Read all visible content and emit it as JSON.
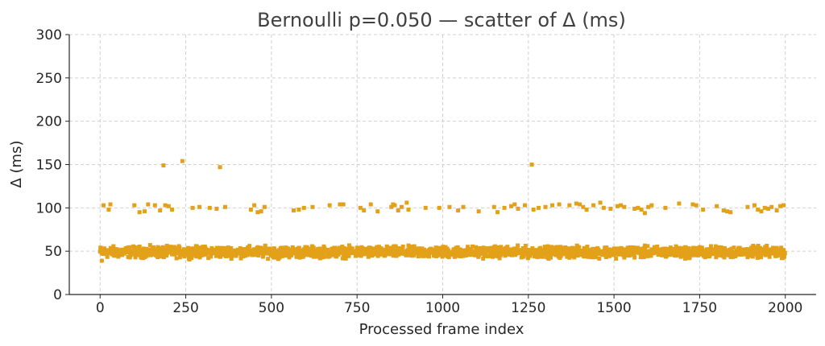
{
  "chart_data": {
    "type": "scatter",
    "title": "Bernoulli p=0.050 — scatter of Δ (ms)",
    "xlabel": "Processed frame index",
    "ylabel": "Δ (ms)",
    "xlim": [
      -90,
      2090
    ],
    "ylim": [
      0,
      300
    ],
    "xticks": [
      0,
      250,
      500,
      750,
      1000,
      1250,
      1500,
      1750,
      2000
    ],
    "xtick_labels": [
      "0",
      "250",
      "500",
      "750",
      "1000",
      "1250",
      "1500",
      "1750",
      "2000"
    ],
    "yticks": [
      0,
      50,
      100,
      150,
      200,
      250,
      300
    ],
    "ytick_labels": [
      "0",
      "50",
      "100",
      "150",
      "200",
      "250",
      "300"
    ],
    "grid": true,
    "marker_color": "#E3A11A",
    "marker": "square",
    "series": [
      {
        "baseline_points": {
          "x_range": [
            0,
            1999
          ],
          "count": 2000,
          "mean": 50,
          "spread": [
            40,
            58
          ]
        },
        "outliers": [
          [
            10,
            103
          ],
          [
            25,
            98
          ],
          [
            30,
            104
          ],
          [
            100,
            103
          ],
          [
            115,
            95
          ],
          [
            130,
            96
          ],
          [
            140,
            104
          ],
          [
            160,
            103
          ],
          [
            175,
            97
          ],
          [
            185,
            149
          ],
          [
            190,
            103
          ],
          [
            200,
            102
          ],
          [
            210,
            98
          ],
          [
            240,
            154
          ],
          [
            270,
            100
          ],
          [
            290,
            101
          ],
          [
            320,
            100
          ],
          [
            340,
            99
          ],
          [
            350,
            147
          ],
          [
            365,
            101
          ],
          [
            440,
            98
          ],
          [
            450,
            103
          ],
          [
            460,
            95
          ],
          [
            470,
            96
          ],
          [
            480,
            101
          ],
          [
            565,
            97
          ],
          [
            580,
            98
          ],
          [
            595,
            100
          ],
          [
            620,
            101
          ],
          [
            670,
            103
          ],
          [
            700,
            104
          ],
          [
            710,
            104
          ],
          [
            760,
            100
          ],
          [
            770,
            97
          ],
          [
            790,
            104
          ],
          [
            810,
            96
          ],
          [
            850,
            101
          ],
          [
            855,
            104
          ],
          [
            860,
            103
          ],
          [
            870,
            97
          ],
          [
            880,
            101
          ],
          [
            895,
            106
          ],
          [
            900,
            98
          ],
          [
            950,
            100
          ],
          [
            990,
            100
          ],
          [
            1020,
            101
          ],
          [
            1045,
            97
          ],
          [
            1060,
            101
          ],
          [
            1105,
            96
          ],
          [
            1150,
            101
          ],
          [
            1160,
            95
          ],
          [
            1180,
            100
          ],
          [
            1200,
            102
          ],
          [
            1210,
            104
          ],
          [
            1220,
            99
          ],
          [
            1240,
            103
          ],
          [
            1260,
            150
          ],
          [
            1265,
            98
          ],
          [
            1280,
            100
          ],
          [
            1300,
            101
          ],
          [
            1320,
            103
          ],
          [
            1340,
            104
          ],
          [
            1370,
            103
          ],
          [
            1390,
            105
          ],
          [
            1400,
            104
          ],
          [
            1410,
            101
          ],
          [
            1420,
            98
          ],
          [
            1440,
            103
          ],
          [
            1460,
            106
          ],
          [
            1470,
            100
          ],
          [
            1490,
            99
          ],
          [
            1510,
            102
          ],
          [
            1520,
            103
          ],
          [
            1530,
            101
          ],
          [
            1560,
            99
          ],
          [
            1570,
            100
          ],
          [
            1580,
            98
          ],
          [
            1590,
            94
          ],
          [
            1600,
            101
          ],
          [
            1610,
            103
          ],
          [
            1650,
            100
          ],
          [
            1690,
            105
          ],
          [
            1730,
            104
          ],
          [
            1740,
            103
          ],
          [
            1760,
            98
          ],
          [
            1800,
            102
          ],
          [
            1820,
            97
          ],
          [
            1830,
            96
          ],
          [
            1840,
            95
          ],
          [
            1890,
            101
          ],
          [
            1910,
            103
          ],
          [
            1920,
            98
          ],
          [
            1930,
            96
          ],
          [
            1940,
            100
          ],
          [
            1950,
            99
          ],
          [
            1960,
            101
          ],
          [
            1975,
            97
          ],
          [
            1985,
            102
          ],
          [
            1995,
            103
          ]
        ],
        "low_points": [
          [
            5,
            39
          ],
          [
            520,
            41
          ],
          [
            1720,
            42
          ]
        ]
      }
    ]
  }
}
